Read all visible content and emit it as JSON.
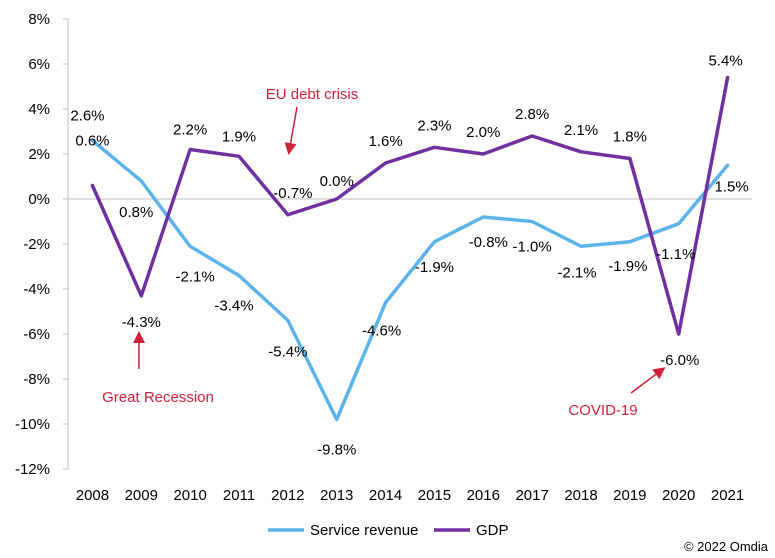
{
  "chart_data": {
    "type": "line",
    "categories": [
      "2008",
      "2009",
      "2010",
      "2011",
      "2012",
      "2013",
      "2014",
      "2015",
      "2016",
      "2017",
      "2018",
      "2019",
      "2020",
      "2021"
    ],
    "series": [
      {
        "name": "Service revenue",
        "color": "#5cb3ea",
        "values": [
          2.6,
          0.8,
          -2.1,
          -3.4,
          -5.4,
          -9.8,
          -4.6,
          -1.9,
          -0.8,
          -1.0,
          -2.1,
          -1.9,
          -1.1,
          1.5
        ],
        "labels": [
          "2.6%",
          "0.8%",
          "-2.1%",
          "-3.4%",
          "-5.4%",
          "-9.8%",
          "-4.6%",
          "-1.9%",
          "-0.8%",
          "-1.0%",
          "-2.1%",
          "-1.9%",
          "-1.1%",
          "1.5%"
        ]
      },
      {
        "name": "GDP",
        "color": "#7030a0",
        "values": [
          0.6,
          -4.3,
          2.2,
          1.9,
          -0.7,
          0.0,
          1.6,
          2.3,
          2.0,
          2.8,
          2.1,
          1.8,
          -6.0,
          5.4
        ],
        "labels": [
          "0.6%",
          "-4.3%",
          "2.2%",
          "1.9%",
          "-0.7%",
          "0.0%",
          "1.6%",
          "2.3%",
          "2.0%",
          "2.8%",
          "2.1%",
          "1.8%",
          "-6.0%",
          "5.4%"
        ]
      }
    ],
    "ylim": [
      -12,
      8
    ],
    "yticks": [
      -12,
      -10,
      -8,
      -6,
      -4,
      -2,
      0,
      2,
      4,
      6,
      8
    ],
    "ytick_labels": [
      "-12%",
      "-10%",
      "-8%",
      "-6%",
      "-4%",
      "-2%",
      "0%",
      "2%",
      "4%",
      "6%",
      "8%"
    ],
    "annotations": [
      {
        "text": "Great Recession",
        "category": "2009"
      },
      {
        "text": "EU debt crisis",
        "category": "2012"
      },
      {
        "text": "COVID-19",
        "category": "2020"
      }
    ],
    "annotation_color": "#d11f3a",
    "legend_position": "bottom",
    "grid": false,
    "title": "",
    "xlabel": "",
    "ylabel": ""
  },
  "copyright": "© 2022 Omdia"
}
